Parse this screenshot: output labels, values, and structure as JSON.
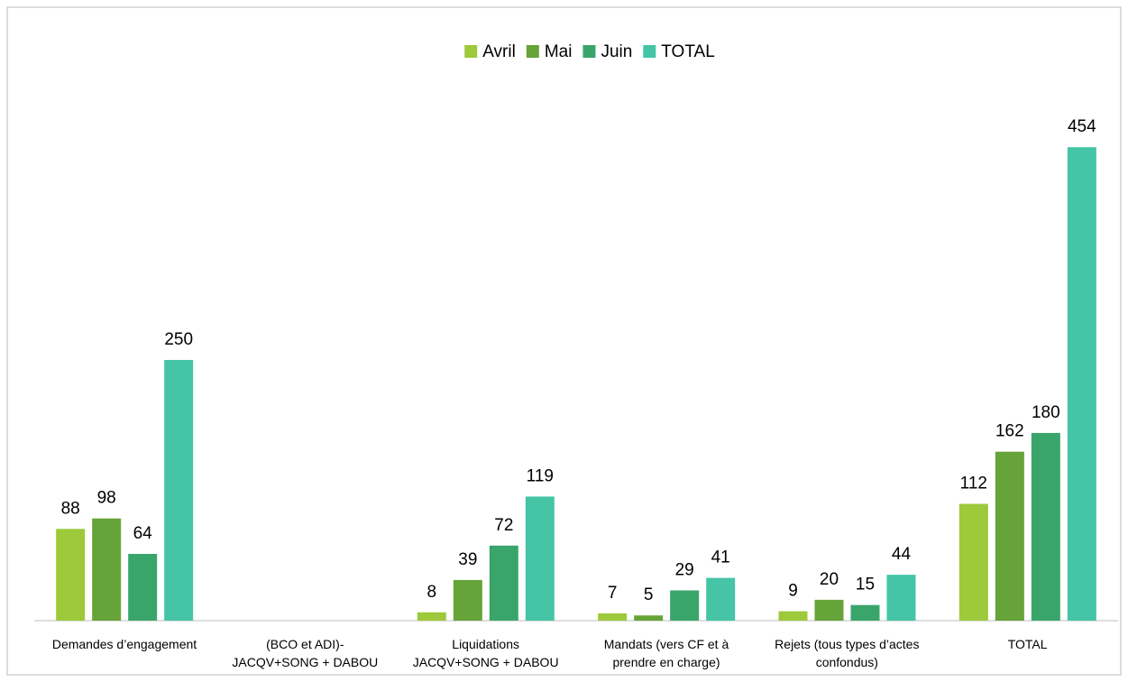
{
  "chart_data": {
    "type": "bar",
    "categories": [
      "Demandes d’engagement",
      "(BCO et ADI)-\nJACQV+SONG + DABOU",
      "Liquidations\nJACQV+SONG + DABOU",
      "Mandats  (vers CF et à\nprendre en charge)",
      "Rejets (tous types d’actes\nconfondus)",
      "TOTAL"
    ],
    "series": [
      {
        "name": "Avril",
        "color": "#9dc93a",
        "values": [
          88,
          null,
          8,
          7,
          9,
          112
        ]
      },
      {
        "name": "Mai",
        "color": "#66a338",
        "values": [
          98,
          null,
          39,
          5,
          20,
          162
        ]
      },
      {
        "name": "Juin",
        "color": "#3aa56b",
        "values": [
          64,
          null,
          72,
          29,
          15,
          180
        ]
      },
      {
        "name": "TOTAL",
        "color": "#45c4a6",
        "values": [
          250,
          null,
          119,
          41,
          44,
          454
        ]
      }
    ],
    "ylim": [
      0,
      500
    ],
    "legend": "top"
  }
}
